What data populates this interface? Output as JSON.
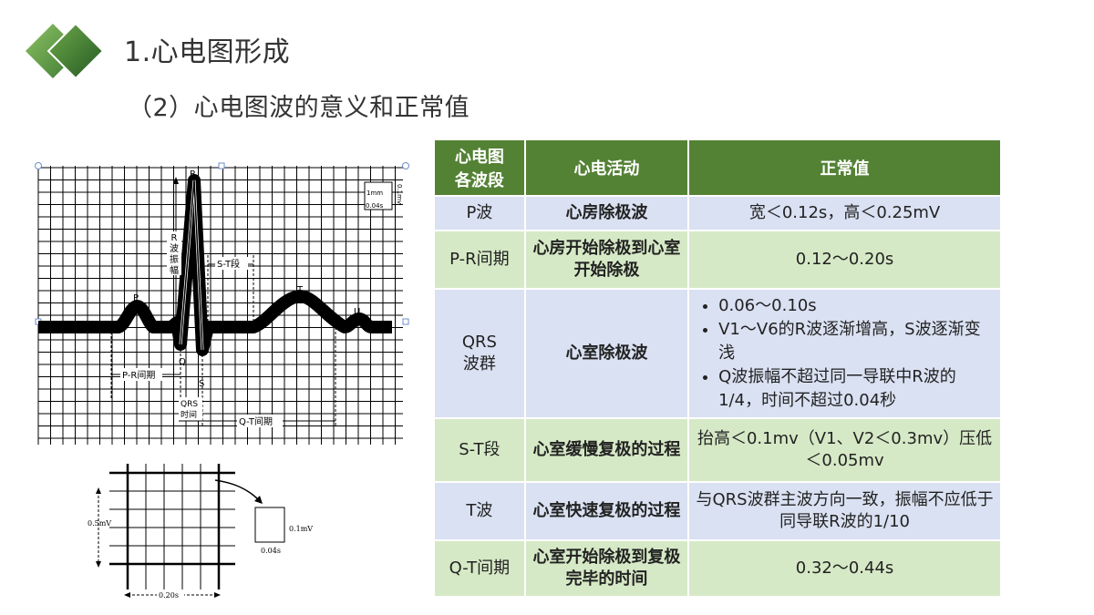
{
  "header": {
    "title": "1.心电图形成",
    "subtitle": "（2）心电图波的意义和正常值"
  },
  "ecg_figure": {
    "labels": {
      "p": "P",
      "q": "Q",
      "r": "R",
      "s": "S",
      "t": "T",
      "u": "U",
      "r_amp": "R\n波\n振\n幅",
      "st": "S-T段",
      "pr": "P-R间期",
      "qrs_1": "QRS",
      "qrs_2": "时间",
      "qt": "Q-T间期",
      "scale_mm": "1mm",
      "scale_mv": "0.1mv",
      "scale_s": "0.04s"
    }
  },
  "grid_figure": {
    "labels": {
      "y_scale": "0.5mV",
      "x_scale": "0.20s",
      "box_v": "0.1mV",
      "box_t": "0.04s"
    }
  },
  "table": {
    "headers": [
      "心电图\n各波段",
      "心电活动",
      "正常值"
    ],
    "rows": [
      {
        "wave": "P波",
        "activity": "心房除极波",
        "normal": "宽＜0.12s，高＜0.25mV"
      },
      {
        "wave": "P-R间期",
        "activity": "心房开始除极到心室开始除极",
        "normal": "0.12～0.20s"
      },
      {
        "wave": "QRS\n波群",
        "activity": "心室除极波",
        "normal_list": [
          "0.06～0.10s",
          "V1～V6的R波逐渐增高，S波逐渐变浅",
          "Q波振幅不超过同一导联中R波的1/4，时间不超过0.04秒"
        ]
      },
      {
        "wave": "S-T段",
        "activity": "心室缓慢复极的过程",
        "normal": "抬高＜0.1mv（V1、V2＜0.3mv）压低＜0.05mv"
      },
      {
        "wave": "T波",
        "activity": "心室快速复极的过程",
        "normal": "与QRS波群主波方向一致，振幅不应低于同导联R波的1/10"
      },
      {
        "wave": "Q-T间期",
        "activity": "心室开始除极到复极完毕的时间",
        "normal": "0.32～0.44s"
      }
    ]
  },
  "colors": {
    "header_green": "#548235",
    "row_blue": "#d9e1f2",
    "row_green": "#d6e9c6",
    "logo_dark": "#2e6b2e",
    "logo_light": "#7ab05a"
  }
}
